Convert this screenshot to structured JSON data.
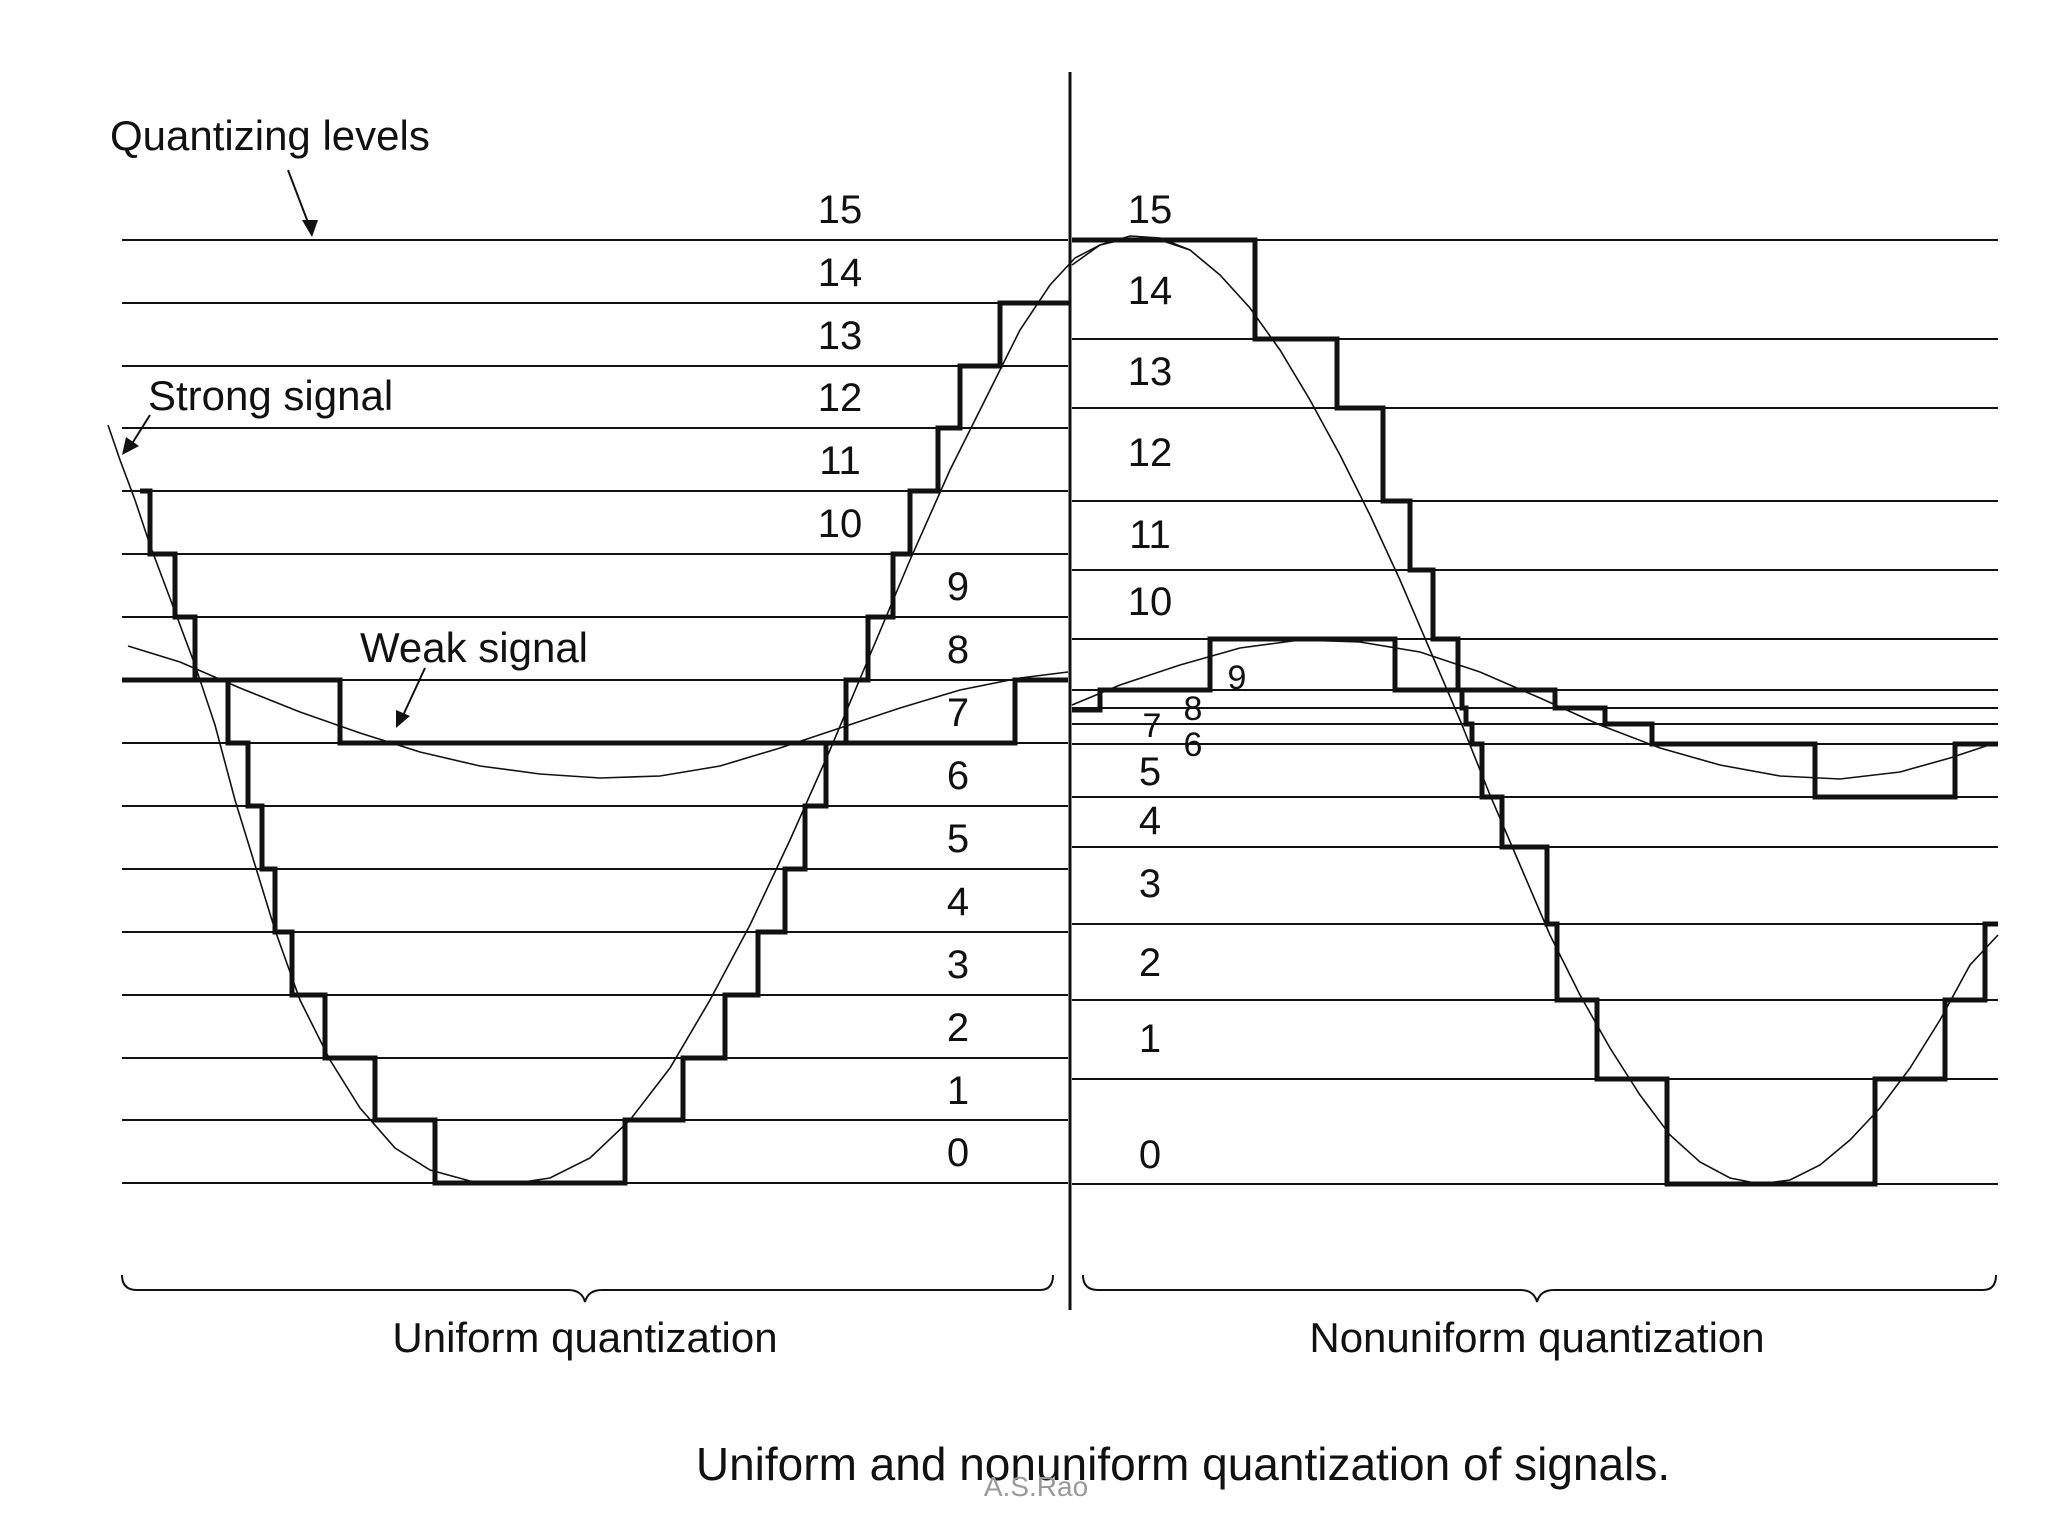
{
  "annotations": {
    "quantizing_levels": "Quantizing levels",
    "strong_signal": "Strong signal",
    "weak_signal": "Weak signal"
  },
  "sections": {
    "uniform": "Uniform quantization",
    "nonuniform": "Nonuniform quantization"
  },
  "caption": "Uniform and nonuniform quantization of signals.",
  "credit": "A.S.Rao",
  "uniform_levels": [
    "0",
    "1",
    "2",
    "3",
    "4",
    "5",
    "6",
    "7",
    "8",
    "9",
    "10",
    "11",
    "12",
    "13",
    "14",
    "15"
  ],
  "nonuniform_levels": [
    "0",
    "1",
    "2",
    "3",
    "4",
    "5",
    "6",
    "7",
    "8",
    "9",
    "10",
    "11",
    "12",
    "13",
    "14",
    "15"
  ],
  "colors": {
    "ink": "#111111",
    "credit": "#9a9a9a",
    "background": "#ffffff"
  }
}
